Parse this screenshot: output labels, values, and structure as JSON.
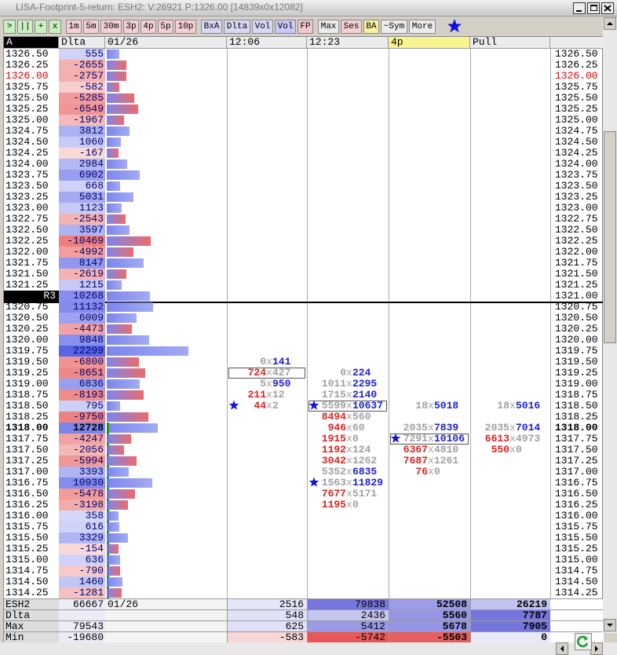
{
  "window": {
    "title": "LISA-Footprint-5-return: ESH2: V:26921 P:1326.00 [14839x0x12082]"
  },
  "toolbar": {
    "groups": [
      {
        "color": "#c8f0c0",
        "buttons": [
          ">",
          "||",
          "+",
          "x"
        ]
      },
      {
        "color": "#f4d0d4",
        "buttons": [
          "1m",
          "5m",
          "30m",
          "3p",
          "4p",
          "5p",
          "10p"
        ]
      },
      {
        "color": "#d8d8f4",
        "buttons": [
          "BxA",
          "Dlta",
          "Vol"
        ]
      },
      {
        "color": "#c8c8f8",
        "buttons": [
          "Vol"
        ]
      },
      {
        "color": "#f4c8cc",
        "buttons": [
          "FP"
        ]
      },
      {
        "color": "#ececec",
        "buttons": [
          "Max"
        ]
      },
      {
        "color": "#f4d0d4",
        "buttons": [
          "Ses"
        ]
      },
      {
        "color": "#f8f4a0",
        "buttons": [
          "BA"
        ]
      },
      {
        "color": "#ececec",
        "buttons": [
          "~Sym",
          "More"
        ]
      }
    ]
  },
  "header": {
    "columns": [
      "A",
      "Dlta",
      "01/26",
      "12:06",
      "12:23",
      "4p",
      "Pull"
    ]
  },
  "ladder": {
    "rows": [
      {
        "price": "1326.50",
        "delta": 555
      },
      {
        "price": "1326.25",
        "delta": -2655
      },
      {
        "price": "1326.00",
        "delta": -2757,
        "emphasis": "red"
      },
      {
        "price": "1325.75",
        "delta": -582
      },
      {
        "price": "1325.50",
        "delta": -5285
      },
      {
        "price": "1325.25",
        "delta": -6549
      },
      {
        "price": "1325.00",
        "delta": -1967
      },
      {
        "price": "1324.75",
        "delta": 3812
      },
      {
        "price": "1324.50",
        "delta": 1060
      },
      {
        "price": "1324.25",
        "delta": -167
      },
      {
        "price": "1324.00",
        "delta": 2984
      },
      {
        "price": "1323.75",
        "delta": 6902
      },
      {
        "price": "1323.50",
        "delta": 668
      },
      {
        "price": "1323.25",
        "delta": 5031
      },
      {
        "price": "1323.00",
        "delta": 1123
      },
      {
        "price": "1322.75",
        "delta": -2543
      },
      {
        "price": "1322.50",
        "delta": 3597
      },
      {
        "price": "1322.25",
        "delta": -10469
      },
      {
        "price": "1322.00",
        "delta": -4992
      },
      {
        "price": "1321.75",
        "delta": 8147
      },
      {
        "price": "1321.50",
        "delta": -2619
      },
      {
        "price": "1321.25",
        "delta": 1215
      },
      {
        "price": "1321.00",
        "delta": 10268,
        "marker": "R3"
      },
      {
        "price": "1320.75",
        "delta": 11132
      },
      {
        "price": "1320.50",
        "delta": 6009
      },
      {
        "price": "1320.25",
        "delta": -4473
      },
      {
        "price": "1320.00",
        "delta": 9848
      },
      {
        "price": "1319.75",
        "delta": 22299
      },
      {
        "price": "1319.50",
        "delta": -6800
      },
      {
        "price": "1319.25",
        "delta": -8651
      },
      {
        "price": "1319.00",
        "delta": 6836
      },
      {
        "price": "1318.75",
        "delta": -8193
      },
      {
        "price": "1318.50",
        "delta": 795
      },
      {
        "price": "1318.25",
        "delta": -9750
      },
      {
        "price": "1318.00",
        "delta": 12728,
        "emphasis": "bold"
      },
      {
        "price": "1317.75",
        "delta": -4247
      },
      {
        "price": "1317.50",
        "delta": -2056
      },
      {
        "price": "1317.25",
        "delta": -5994
      },
      {
        "price": "1317.00",
        "delta": 3393
      },
      {
        "price": "1316.75",
        "delta": 10930
      },
      {
        "price": "1316.50",
        "delta": -5478
      },
      {
        "price": "1316.25",
        "delta": -3198
      },
      {
        "price": "1316.00",
        "delta": 358
      },
      {
        "price": "1315.75",
        "delta": 616
      },
      {
        "price": "1315.50",
        "delta": 3329
      },
      {
        "price": "1315.25",
        "delta": -154
      },
      {
        "price": "1315.00",
        "delta": 636
      },
      {
        "price": "1314.75",
        "delta": -790
      },
      {
        "price": "1314.50",
        "delta": 1460
      },
      {
        "price": "1314.25",
        "delta": -1281
      }
    ]
  },
  "footprint": {
    "separator": "x",
    "columns": [
      {
        "cells": [
          {
            "price": "1319.50",
            "bid": 0,
            "ask": 141
          },
          {
            "price": "1319.25",
            "bid": 724,
            "ask": 427,
            "boxed": true
          },
          {
            "price": "1319.00",
            "bid": 5,
            "ask": 950
          },
          {
            "price": "1318.75",
            "bid": 211,
            "ask": 12
          },
          {
            "price": "1318.50",
            "bid": 44,
            "ask": 2,
            "star": true
          }
        ]
      },
      {
        "cells": [
          {
            "price": "1319.25",
            "bid": 0,
            "ask": 224
          },
          {
            "price": "1319.00",
            "bid": 1011,
            "ask": 2295
          },
          {
            "price": "1318.75",
            "bid": 1715,
            "ask": 2140
          },
          {
            "price": "1318.50",
            "bid": 5599,
            "ask": 10637,
            "star": true,
            "boxed": true
          },
          {
            "price": "1318.25",
            "bid": 8494,
            "ask": 560
          },
          {
            "price": "1318.00",
            "bid": 946,
            "ask": 60
          },
          {
            "price": "1317.75",
            "bid": 1915,
            "ask": 0
          },
          {
            "price": "1317.50",
            "bid": 1192,
            "ask": 124
          },
          {
            "price": "1317.25",
            "bid": 3042,
            "ask": 1262
          },
          {
            "price": "1317.00",
            "bid": 5352,
            "ask": 6835
          },
          {
            "price": "1316.75",
            "bid": 1563,
            "ask": 11829,
            "star": true
          },
          {
            "price": "1316.50",
            "bid": 7677,
            "ask": 5171
          },
          {
            "price": "1316.25",
            "bid": 1195,
            "ask": 0
          }
        ]
      },
      {
        "cells": [
          {
            "price": "1318.50",
            "bid": 18,
            "ask": 5018
          },
          {
            "price": "1318.00",
            "bid": 2035,
            "ask": 7839
          },
          {
            "price": "1317.75",
            "bid": 7291,
            "ask": 10106,
            "star": true,
            "boxed": true
          },
          {
            "price": "1317.50",
            "bid": 6367,
            "ask": 4810
          },
          {
            "price": "1317.25",
            "bid": 7687,
            "ask": 1261
          },
          {
            "price": "1317.00",
            "bid": 76,
            "ask": 0
          }
        ]
      },
      {
        "cells": [
          {
            "price": "1318.50",
            "bid": 18,
            "ask": 5016
          },
          {
            "price": "1318.00",
            "bid": 2035,
            "ask": 7014
          },
          {
            "price": "1317.75",
            "bid": 6613,
            "ask": 4973
          },
          {
            "price": "1317.50",
            "bid": 550,
            "ask": 0
          }
        ]
      }
    ]
  },
  "summary": {
    "rows": [
      {
        "label": "ESH2",
        "total": 66667,
        "date": "01/26",
        "values": [
          2516,
          79838,
          52508,
          26219
        ]
      },
      {
        "label": "Dlta",
        "values": [
          548,
          2436,
          5560,
          7787
        ]
      },
      {
        "label": "Max",
        "total": 79543,
        "values": [
          625,
          5412,
          5678,
          7905
        ]
      },
      {
        "label": "Min",
        "total": -19680,
        "values": [
          -583,
          -5742,
          -5503,
          0
        ]
      }
    ]
  }
}
